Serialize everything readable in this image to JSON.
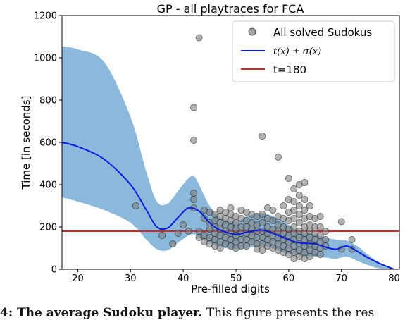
{
  "chart_data": {
    "type": "scatter",
    "title": "GP - all playtraces for FCA",
    "xlabel": "Pre-filled digits",
    "ylabel": "Time [in seconds]",
    "xlim": [
      17,
      81
    ],
    "ylim": [
      0,
      1200
    ],
    "xticks": [
      20,
      30,
      40,
      50,
      60,
      70,
      80
    ],
    "yticks": [
      0,
      200,
      400,
      600,
      800,
      1000,
      1200
    ],
    "grid": false,
    "legend_position": "top-right",
    "legend": [
      {
        "label": "All solved Sudokus",
        "type": "marker"
      },
      {
        "label": "t(x) ± σ(x)",
        "type": "line"
      },
      {
        "label": "t=180",
        "type": "line"
      }
    ],
    "colors": {
      "points": "#7f7f7f",
      "mean_line": "#0a1ee0",
      "band": "#8bb9dc",
      "threshold": "#d62728"
    },
    "threshold": {
      "label": "t=180",
      "y": 180
    },
    "series": [
      {
        "kind": "mean",
        "x": [
          17,
          20,
          25,
          30,
          33,
          35,
          37,
          39,
          41,
          43,
          45,
          47,
          50,
          52,
          55,
          58,
          60,
          62,
          65,
          67,
          69,
          71,
          73,
          75,
          77,
          80
        ],
        "y": [
          600,
          580,
          520,
          400,
          280,
          200,
          195,
          245,
          290,
          275,
          220,
          185,
          165,
          175,
          185,
          160,
          140,
          125,
          120,
          105,
          95,
          110,
          85,
          55,
          30,
          0
        ]
      },
      {
        "kind": "band-upper",
        "x": [
          17,
          20,
          25,
          30,
          33,
          35,
          37,
          39,
          41,
          42,
          43,
          45,
          47,
          50,
          52,
          55,
          58,
          60,
          62,
          65,
          67,
          69,
          71,
          73,
          75,
          77,
          80
        ],
        "y": [
          1055,
          1040,
          980,
          720,
          460,
          320,
          310,
          370,
          430,
          440,
          400,
          300,
          245,
          225,
          250,
          265,
          240,
          210,
          180,
          165,
          150,
          140,
          135,
          110,
          70,
          35,
          0
        ]
      },
      {
        "kind": "band-lower",
        "x": [
          17,
          20,
          25,
          30,
          33,
          35,
          37,
          39,
          41,
          42,
          43,
          45,
          47,
          50,
          52,
          55,
          58,
          60,
          62,
          65,
          67,
          69,
          71,
          73,
          75,
          77,
          80
        ],
        "y": [
          340,
          320,
          280,
          220,
          140,
          95,
          90,
          125,
          160,
          165,
          150,
          125,
          105,
          95,
          100,
          110,
          90,
          75,
          65,
          60,
          55,
          50,
          60,
          40,
          20,
          5,
          0
        ]
      },
      {
        "kind": "points",
        "name": "All solved Sudokus",
        "points": [
          [
            31,
            300
          ],
          [
            36,
            160
          ],
          [
            38,
            120
          ],
          [
            39,
            170
          ],
          [
            40,
            210
          ],
          [
            41,
            180
          ],
          [
            42,
            765
          ],
          [
            42,
            610
          ],
          [
            42,
            360
          ],
          [
            42,
            330
          ],
          [
            42,
            290
          ],
          [
            43,
            1095
          ],
          [
            43,
            180
          ],
          [
            43,
            150
          ],
          [
            44,
            280
          ],
          [
            44,
            240
          ],
          [
            44,
            160
          ],
          [
            44,
            130
          ],
          [
            45,
            270
          ],
          [
            45,
            220
          ],
          [
            45,
            190
          ],
          [
            45,
            150
          ],
          [
            45,
            120
          ],
          [
            46,
            260
          ],
          [
            46,
            230
          ],
          [
            46,
            200
          ],
          [
            46,
            170
          ],
          [
            46,
            140
          ],
          [
            46,
            110
          ],
          [
            47,
            280
          ],
          [
            47,
            250
          ],
          [
            47,
            220
          ],
          [
            47,
            190
          ],
          [
            47,
            160
          ],
          [
            47,
            130
          ],
          [
            47,
            100
          ],
          [
            48,
            270
          ],
          [
            48,
            240
          ],
          [
            48,
            210
          ],
          [
            48,
            180
          ],
          [
            48,
            150
          ],
          [
            48,
            120
          ],
          [
            49,
            290
          ],
          [
            49,
            260
          ],
          [
            49,
            230
          ],
          [
            49,
            200
          ],
          [
            49,
            170
          ],
          [
            49,
            140
          ],
          [
            49,
            110
          ],
          [
            50,
            250
          ],
          [
            50,
            220
          ],
          [
            50,
            190
          ],
          [
            50,
            160
          ],
          [
            50,
            130
          ],
          [
            50,
            100
          ],
          [
            51,
            280
          ],
          [
            51,
            240
          ],
          [
            51,
            200
          ],
          [
            51,
            170
          ],
          [
            51,
            140
          ],
          [
            51,
            110
          ],
          [
            52,
            270
          ],
          [
            52,
            230
          ],
          [
            52,
            200
          ],
          [
            52,
            170
          ],
          [
            52,
            140
          ],
          [
            52,
            110
          ],
          [
            53,
            260
          ],
          [
            53,
            220
          ],
          [
            53,
            190
          ],
          [
            53,
            160
          ],
          [
            53,
            130
          ],
          [
            54,
            250
          ],
          [
            54,
            210
          ],
          [
            54,
            180
          ],
          [
            54,
            150
          ],
          [
            54,
            120
          ],
          [
            54,
            95
          ],
          [
            55,
            630
          ],
          [
            55,
            260
          ],
          [
            55,
            220
          ],
          [
            55,
            180
          ],
          [
            55,
            150
          ],
          [
            55,
            120
          ],
          [
            55,
            90
          ],
          [
            56,
            290
          ],
          [
            56,
            240
          ],
          [
            56,
            200
          ],
          [
            56,
            170
          ],
          [
            56,
            140
          ],
          [
            56,
            110
          ],
          [
            57,
            280
          ],
          [
            57,
            230
          ],
          [
            57,
            190
          ],
          [
            57,
            160
          ],
          [
            57,
            130
          ],
          [
            57,
            100
          ],
          [
            58,
            530
          ],
          [
            58,
            250
          ],
          [
            58,
            210
          ],
          [
            58,
            180
          ],
          [
            58,
            150
          ],
          [
            58,
            120
          ],
          [
            58,
            90
          ],
          [
            59,
            300
          ],
          [
            59,
            240
          ],
          [
            59,
            200
          ],
          [
            59,
            170
          ],
          [
            59,
            140
          ],
          [
            59,
            110
          ],
          [
            59,
            80
          ],
          [
            60,
            430
          ],
          [
            60,
            330
          ],
          [
            60,
            270
          ],
          [
            60,
            230
          ],
          [
            60,
            190
          ],
          [
            60,
            160
          ],
          [
            60,
            130
          ],
          [
            60,
            100
          ],
          [
            60,
            70
          ],
          [
            61,
            380
          ],
          [
            61,
            320
          ],
          [
            61,
            280
          ],
          [
            61,
            240
          ],
          [
            61,
            200
          ],
          [
            61,
            170
          ],
          [
            61,
            140
          ],
          [
            61,
            110
          ],
          [
            61,
            80
          ],
          [
            61,
            50
          ],
          [
            62,
            400
          ],
          [
            62,
            350
          ],
          [
            62,
            300
          ],
          [
            62,
            260
          ],
          [
            62,
            220
          ],
          [
            62,
            180
          ],
          [
            62,
            150
          ],
          [
            62,
            120
          ],
          [
            62,
            90
          ],
          [
            62,
            60
          ],
          [
            63,
            410
          ],
          [
            63,
            330
          ],
          [
            63,
            280
          ],
          [
            63,
            240
          ],
          [
            63,
            200
          ],
          [
            63,
            170
          ],
          [
            63,
            140
          ],
          [
            63,
            110
          ],
          [
            63,
            80
          ],
          [
            63,
            50
          ],
          [
            64,
            300
          ],
          [
            64,
            250
          ],
          [
            64,
            210
          ],
          [
            64,
            180
          ],
          [
            64,
            150
          ],
          [
            64,
            120
          ],
          [
            64,
            90
          ],
          [
            64,
            60
          ],
          [
            65,
            240
          ],
          [
            65,
            200
          ],
          [
            65,
            170
          ],
          [
            65,
            140
          ],
          [
            65,
            110
          ],
          [
            65,
            80
          ],
          [
            66,
            250
          ],
          [
            66,
            200
          ],
          [
            66,
            160
          ],
          [
            66,
            130
          ],
          [
            66,
            100
          ],
          [
            66,
            70
          ],
          [
            67,
            180
          ],
          [
            67,
            140
          ],
          [
            67,
            110
          ],
          [
            70,
            225
          ],
          [
            70,
            95
          ],
          [
            72,
            140
          ],
          [
            72,
            95
          ]
        ]
      }
    ]
  },
  "caption": {
    "bold": "4: The average Sudoku player.",
    "text": " This figure presents the res"
  }
}
